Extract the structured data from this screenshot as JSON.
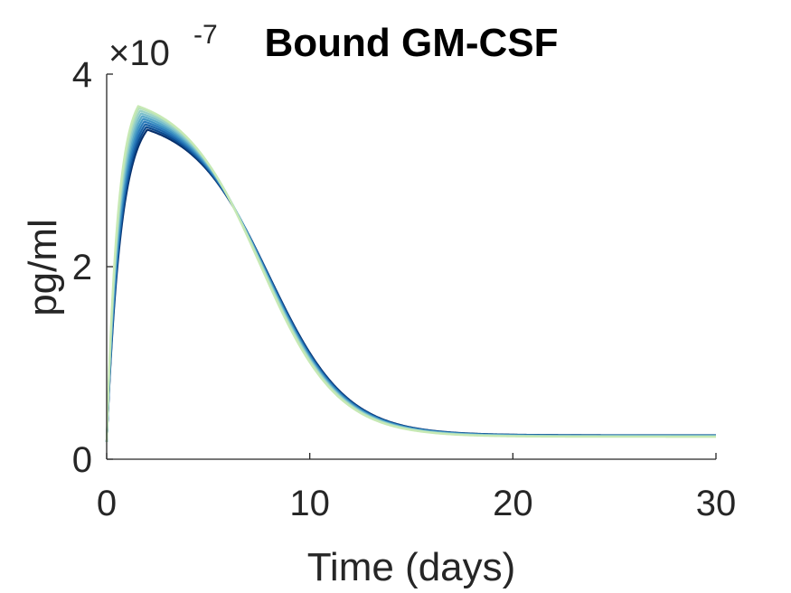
{
  "chart_data": {
    "type": "line",
    "title": "Bound GM-CSF",
    "xlabel": "Time (days)",
    "ylabel": "pg/ml",
    "y_exponent_prefix": "×10",
    "y_exponent_power": "-7",
    "xlim": [
      0,
      30
    ],
    "ylim": [
      0,
      4
    ],
    "y_multiplier": 1e-07,
    "x_ticks": [
      0,
      10,
      20,
      30
    ],
    "x_tick_labels": [
      "0",
      "10",
      "20",
      "30"
    ],
    "y_ticks": [
      0,
      2,
      4
    ],
    "y_tick_labels": [
      "0",
      "2",
      "4"
    ],
    "grid": false,
    "colormap": [
      "#08306b",
      "#0b4a8f",
      "#1a64a8",
      "#2b7bba",
      "#3f93c2",
      "#5aa9c8",
      "#7bbfcb",
      "#99d1c6",
      "#b5e0bb",
      "#c7e9b4"
    ],
    "series": [
      {
        "color": "#08306b",
        "peak_time": 2.0,
        "peak": 3.62,
        "tail_level": 0.07,
        "decay_mid": 8.0
      },
      {
        "color": "#0b4a8f",
        "peak_time": 1.95,
        "peak": 3.65,
        "tail_level": 0.069,
        "decay_mid": 7.95
      },
      {
        "color": "#1a64a8",
        "peak_time": 1.9,
        "peak": 3.68,
        "tail_level": 0.068,
        "decay_mid": 7.9
      },
      {
        "color": "#2b7bba",
        "peak_time": 1.85,
        "peak": 3.71,
        "tail_level": 0.067,
        "decay_mid": 7.85
      },
      {
        "color": "#3f93c2",
        "peak_time": 1.8,
        "peak": 3.74,
        "tail_level": 0.066,
        "decay_mid": 7.8
      },
      {
        "color": "#5aa9c8",
        "peak_time": 1.75,
        "peak": 3.77,
        "tail_level": 0.065,
        "decay_mid": 7.75
      },
      {
        "color": "#7bbfcb",
        "peak_time": 1.7,
        "peak": 3.8,
        "tail_level": 0.064,
        "decay_mid": 7.7
      },
      {
        "color": "#99d1c6",
        "peak_time": 1.65,
        "peak": 3.83,
        "tail_level": 0.063,
        "decay_mid": 7.65
      },
      {
        "color": "#b5e0bb",
        "peak_time": 1.6,
        "peak": 3.86,
        "tail_level": 0.062,
        "decay_mid": 7.6
      },
      {
        "color": "#c7e9b4",
        "peak_time": 1.55,
        "peak": 3.88,
        "tail_level": 0.061,
        "decay_mid": 7.55
      }
    ]
  }
}
